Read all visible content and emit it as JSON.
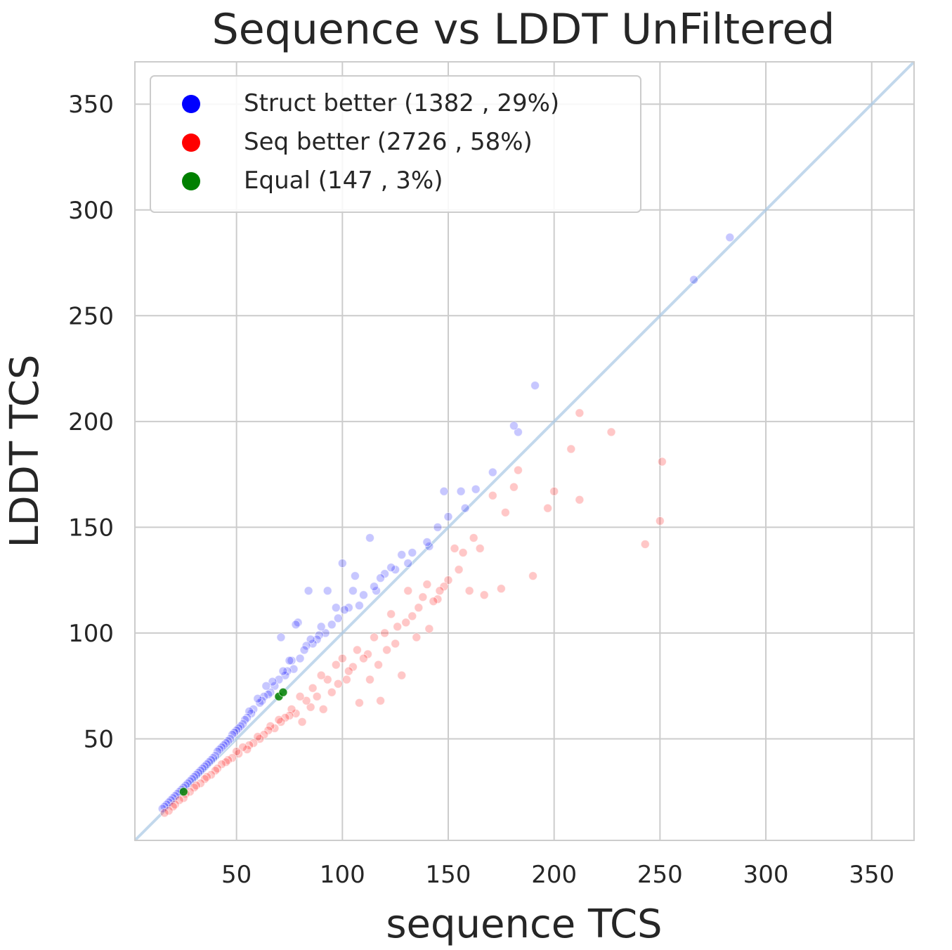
{
  "chart_data": {
    "type": "scatter",
    "title": "Sequence vs LDDT UnFiltered",
    "xlabel": "sequence TCS",
    "ylabel": "LDDT TCS",
    "xlim": [
      2,
      370
    ],
    "ylim": [
      2,
      370
    ],
    "xticks": [
      50,
      100,
      150,
      200,
      250,
      300,
      350
    ],
    "yticks": [
      50,
      100,
      150,
      200,
      250,
      300,
      350
    ],
    "grid": true,
    "legend_position": "top-left",
    "reference_line": "y = x",
    "series": [
      {
        "name": "Struct better (1382 , 29%)",
        "color": "#0000ff",
        "x": [
          283,
          266,
          191,
          183,
          181,
          171,
          163,
          158,
          156,
          150,
          148,
          145,
          141,
          140,
          133,
          131,
          128,
          125,
          123,
          120,
          118,
          116,
          115,
          113,
          110,
          108,
          106,
          105,
          103,
          101,
          100,
          98,
          97,
          95,
          93,
          92,
          90,
          89,
          88,
          86,
          85,
          84,
          83,
          82,
          80,
          79,
          78,
          77,
          76,
          75,
          74,
          73,
          72,
          71,
          70,
          68,
          67,
          66,
          65,
          64,
          63,
          62,
          61,
          60,
          58,
          57,
          56,
          55,
          54,
          53,
          52,
          51,
          50,
          49,
          48,
          47,
          46,
          45,
          44,
          43,
          42,
          41,
          40,
          39,
          38,
          37,
          36,
          35,
          34,
          33,
          32,
          31,
          30,
          29,
          28,
          27,
          26,
          25,
          24,
          23,
          22,
          21,
          20,
          19,
          18,
          17,
          16,
          15
        ],
        "y": [
          287,
          267,
          217,
          195,
          198,
          176,
          168,
          159,
          167,
          155,
          167,
          150,
          141,
          143,
          138,
          133,
          137,
          130,
          131,
          128,
          126,
          120,
          122,
          145,
          118,
          113,
          127,
          120,
          112,
          111,
          133,
          107,
          112,
          104,
          120,
          100,
          103,
          99,
          97,
          95,
          97,
          120,
          94,
          92,
          88,
          105,
          104,
          83,
          87,
          87,
          82,
          80,
          82,
          98,
          78,
          75,
          77,
          72,
          71,
          75,
          70,
          68,
          67,
          69,
          64,
          62,
          63,
          60,
          59,
          57,
          56,
          55,
          54,
          53,
          52,
          50,
          49,
          48,
          47,
          46,
          45,
          44,
          42,
          41,
          40,
          39,
          38,
          37,
          36,
          35,
          34,
          33,
          32,
          31,
          30,
          29,
          28,
          27,
          26,
          25,
          24,
          23,
          22,
          21,
          20,
          19,
          18,
          17
        ]
      },
      {
        "name": "Seq better (2726 , 58%)",
        "color": "#ff0000",
        "x": [
          251,
          250,
          243,
          227,
          212,
          212,
          208,
          200,
          197,
          190,
          183,
          181,
          177,
          175,
          171,
          167,
          165,
          162,
          160,
          157,
          155,
          153,
          150,
          148,
          146,
          145,
          143,
          141,
          140,
          138,
          136,
          135,
          133,
          131,
          130,
          128,
          126,
          125,
          123,
          121,
          120,
          118,
          117,
          115,
          113,
          112,
          110,
          108,
          107,
          105,
          103,
          102,
          100,
          98,
          97,
          95,
          93,
          91,
          90,
          88,
          86,
          85,
          83,
          81,
          80,
          78,
          76,
          75,
          73,
          71,
          70,
          68,
          66,
          65,
          63,
          61,
          60,
          58,
          56,
          55,
          53,
          51,
          50,
          48,
          46,
          45,
          43,
          41,
          40,
          38,
          36,
          35,
          33,
          31,
          30,
          28,
          26,
          25,
          23,
          21,
          20,
          18,
          16
        ],
        "y": [
          181,
          153,
          142,
          195,
          204,
          163,
          187,
          167,
          159,
          127,
          177,
          169,
          157,
          121,
          165,
          118,
          140,
          145,
          120,
          138,
          130,
          140,
          125,
          122,
          120,
          116,
          115,
          102,
          123,
          117,
          112,
          98,
          108,
          120,
          105,
          80,
          103,
          95,
          109,
          92,
          100,
          68,
          85,
          98,
          78,
          90,
          88,
          67,
          92,
          84,
          82,
          78,
          88,
          76,
          85,
          72,
          78,
          64,
          80,
          70,
          74,
          65,
          68,
          58,
          70,
          62,
          64,
          61,
          60,
          58,
          59,
          55,
          56,
          54,
          52,
          50,
          51,
          48,
          47,
          45,
          46,
          43,
          44,
          41,
          40,
          39,
          38,
          36,
          35,
          33,
          32,
          31,
          29,
          28,
          27,
          25,
          24,
          22,
          21,
          19,
          18,
          16,
          15
        ]
      },
      {
        "name": "Equal (147 , 3%)",
        "color": "#008000",
        "x": [
          25,
          70,
          72
        ],
        "y": [
          25,
          70,
          72
        ]
      }
    ]
  }
}
